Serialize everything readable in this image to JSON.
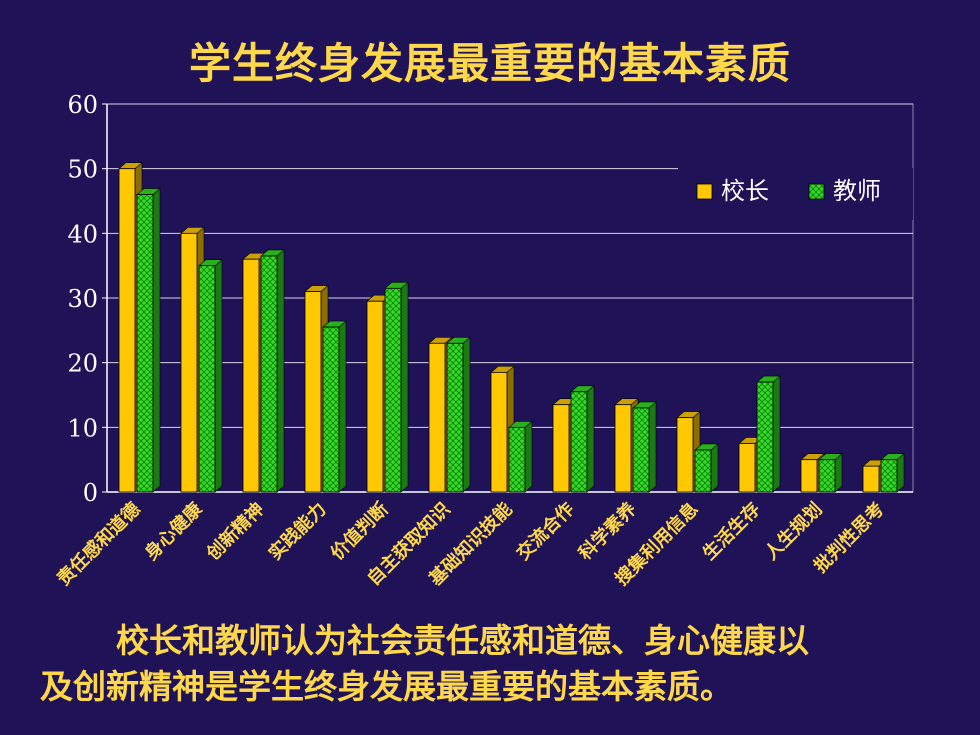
{
  "title": "学生终身发展最重要的基本素质",
  "caption": {
    "line1": "校长和教师认为社会责任感和道德、身心健康以",
    "line2": "及创新精神是学生终身发展最重要的基本素质。"
  },
  "colors": {
    "background": "#1f1257",
    "principal": "#ffc800",
    "teacher": "#33dd22",
    "title": "#ffd84a"
  },
  "chart_data": {
    "type": "bar",
    "title": "学生终身发展最重要的基本素质",
    "xlabel": "",
    "ylabel": "",
    "ylim": [
      0,
      60
    ],
    "yticks": [
      "0",
      "10",
      "20",
      "30",
      "40",
      "50",
      "60"
    ],
    "grid": true,
    "legend_position": "top-right",
    "categories": [
      "责任感和道德",
      "身心健康",
      "创新精神",
      "实践能力",
      "价值判断",
      "自主获取知识",
      "基础知识技能",
      "交流合作",
      "科学素养",
      "搜集利用信息",
      "生活生存",
      "人生规划",
      "批判性思考"
    ],
    "series": [
      {
        "name": "校长",
        "color": "#ffc800",
        "values": [
          50,
          40,
          36,
          31,
          29.5,
          23,
          18.5,
          13.5,
          13.5,
          11.5,
          7.5,
          5,
          4
        ]
      },
      {
        "name": "教师",
        "color": "#33dd22",
        "values": [
          46,
          35,
          36.5,
          25.5,
          31.5,
          23,
          10,
          15.5,
          13,
          6.5,
          17,
          5,
          5
        ]
      }
    ]
  }
}
